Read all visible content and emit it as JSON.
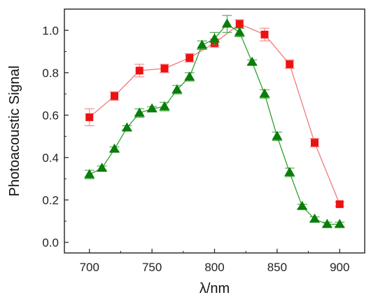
{
  "chart_data": {
    "type": "scatter",
    "title": "",
    "xlabel": "λ/nm",
    "ylabel": "Photoacoustic Signal",
    "xlim": [
      680,
      920
    ],
    "ylim": [
      -0.05,
      1.1
    ],
    "xticks": [
      700,
      750,
      800,
      850,
      900
    ],
    "yticks": [
      0.0,
      0.2,
      0.4,
      0.6,
      0.8,
      1.0
    ],
    "xtick_labels": [
      "700",
      "750",
      "800",
      "850",
      "900"
    ],
    "ytick_labels": [
      "0.0",
      "0.2",
      "0.4",
      "0.6",
      "0.8",
      "1.0"
    ],
    "grid": false,
    "legend": "none",
    "series": [
      {
        "marker": "square",
        "color": "#ee1111",
        "line_color": "#f07a7a",
        "x": [
          700,
          720,
          740,
          760,
          780,
          800,
          820,
          840,
          860,
          880,
          900
        ],
        "y": [
          0.59,
          0.69,
          0.81,
          0.82,
          0.87,
          0.94,
          1.03,
          0.98,
          0.84,
          0.47,
          0.18
        ],
        "error": [
          0.04,
          0.02,
          0.03,
          0.02,
          0.02,
          0.02,
          0.02,
          0.03,
          0.02,
          0.02,
          0.01
        ]
      },
      {
        "marker": "triangle",
        "color": "#0a7d0a",
        "line_color": "#2fa02f",
        "x": [
          700,
          710,
          720,
          730,
          740,
          750,
          760,
          770,
          780,
          790,
          800,
          810,
          820,
          830,
          840,
          850,
          860,
          870,
          880,
          890,
          900
        ],
        "y": [
          0.32,
          0.35,
          0.44,
          0.54,
          0.61,
          0.63,
          0.64,
          0.72,
          0.78,
          0.93,
          0.96,
          1.03,
          0.99,
          0.85,
          0.7,
          0.5,
          0.33,
          0.17,
          0.11,
          0.085,
          0.085
        ],
        "error": [
          0.02,
          0.01,
          0.01,
          0.01,
          0.02,
          0.01,
          0.02,
          0.02,
          0.02,
          0.02,
          0.03,
          0.04,
          0.02,
          0.01,
          0.02,
          0.02,
          0.02,
          0.01,
          0.01,
          0.01,
          0.01
        ]
      }
    ]
  }
}
